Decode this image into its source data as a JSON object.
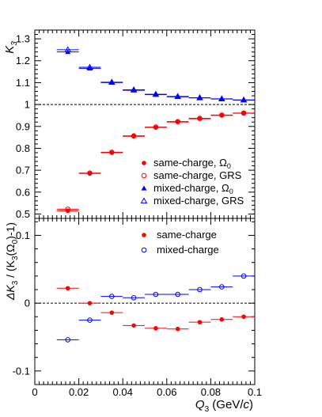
{
  "colors": {
    "same_charge": "#ff0000",
    "mixed_charge": "#0000ff",
    "axis": "#000000",
    "reference_line": "#000000"
  },
  "chart_data": [
    {
      "type": "scatter",
      "panel": "top",
      "ylabel_main": "K",
      "ylabel_sub": "3",
      "ylim": [
        0.48,
        1.34
      ],
      "xlim": [
        0,
        0.1
      ],
      "yticks": [
        0.5,
        0.6,
        0.7,
        0.8,
        0.9,
        1,
        1.1,
        1.2,
        1.3
      ],
      "ytick_labels": [
        "0.5",
        "0.6",
        "0.7",
        "0.8",
        "0.9",
        "1",
        "1.1",
        "1.2",
        "1.3"
      ],
      "reference_line": 1,
      "legend_position": "lower-right",
      "x_bin_width": 0.01,
      "series": [
        {
          "name": "same-charge, Ω",
          "name_sub": "0",
          "marker": "filled-circle",
          "color": "#ff0000",
          "x": [
            0.015,
            0.025,
            0.035,
            0.045,
            0.055,
            0.065,
            0.075,
            0.085,
            0.095
          ],
          "y": [
            0.515,
            0.685,
            0.78,
            0.855,
            0.895,
            0.92,
            0.935,
            0.95,
            0.96
          ]
        },
        {
          "name": "same-charge, GRS",
          "marker": "open-circle",
          "color": "#ff0000",
          "x": [
            0.015,
            0.025,
            0.035,
            0.045,
            0.055,
            0.065,
            0.075,
            0.085,
            0.095
          ],
          "y": [
            0.522,
            0.687,
            0.782,
            0.857,
            0.897,
            0.922,
            0.937,
            0.952,
            0.961
          ]
        },
        {
          "name": "mixed-charge, Ω",
          "name_sub": "0",
          "marker": "filled-triangle",
          "color": "#0000ff",
          "x": [
            0.015,
            0.025,
            0.035,
            0.045,
            0.055,
            0.065,
            0.075,
            0.085,
            0.095
          ],
          "y": [
            1.24,
            1.165,
            1.1,
            1.065,
            1.045,
            1.035,
            1.03,
            1.025,
            1.02
          ]
        },
        {
          "name": "mixed-charge, GRS",
          "marker": "open-triangle",
          "color": "#0000ff",
          "x": [
            0.015,
            0.025,
            0.035,
            0.045,
            0.055,
            0.065,
            0.075,
            0.085,
            0.095
          ],
          "y": [
            1.25,
            1.17,
            1.102,
            1.067,
            1.047,
            1.037,
            1.031,
            1.026,
            1.021
          ]
        }
      ]
    },
    {
      "type": "scatter",
      "panel": "bottom",
      "ylabel_main": "ΔK",
      "ylabel_sub1": "3",
      "ylabel_mid": " / (K",
      "ylabel_sub2": "3",
      "ylabel_mid2": "(Ω",
      "ylabel_sub3": "0",
      "ylabel_end": ")-1)",
      "xlabel_main": "Q",
      "xlabel_sub": "3",
      "xlabel_units_open": " (GeV/",
      "xlabel_units_italic": "c",
      "xlabel_units_close": ")",
      "ylim": [
        -0.12,
        0.125
      ],
      "xlim": [
        0,
        0.1
      ],
      "yticks": [
        -0.1,
        0,
        0.1
      ],
      "ytick_labels": [
        "-0.1",
        "0",
        "0.1"
      ],
      "xticks": [
        0,
        0.02,
        0.04,
        0.06,
        0.08,
        0.1
      ],
      "xtick_labels": [
        "0",
        "0.02",
        "0.04",
        "0.06",
        "0.08",
        "0.1"
      ],
      "reference_line": 0,
      "legend_position": "top-right",
      "x_bin_width": 0.01,
      "series": [
        {
          "name": "same-charge",
          "marker": "filled-circle",
          "color": "#ff0000",
          "x": [
            0.015,
            0.025,
            0.035,
            0.045,
            0.055,
            0.065,
            0.075,
            0.085,
            0.095
          ],
          "y": [
            0.022,
            0.0,
            -0.014,
            -0.033,
            -0.037,
            -0.038,
            -0.028,
            -0.024,
            -0.02
          ]
        },
        {
          "name": "mixed-charge",
          "marker": "open-circle",
          "color": "#0000ff",
          "x": [
            0.015,
            0.025,
            0.035,
            0.045,
            0.055,
            0.065,
            0.075,
            0.085,
            0.095
          ],
          "y": [
            -0.054,
            -0.025,
            0.01,
            0.008,
            0.013,
            0.013,
            0.02,
            0.024,
            0.04
          ]
        }
      ]
    }
  ]
}
